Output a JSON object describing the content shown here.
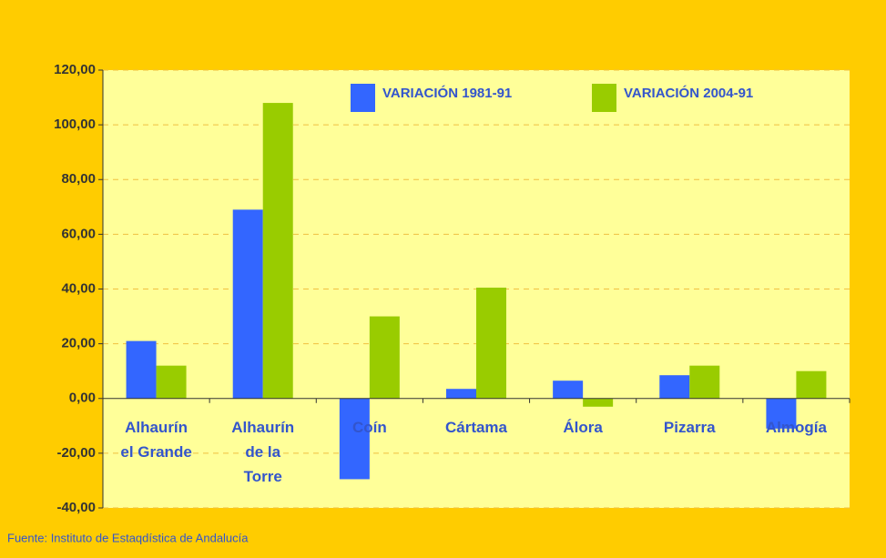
{
  "chart_data": {
    "type": "bar",
    "categories": [
      "Alhaurín el Grande",
      "Alhaurín de la Torre",
      "Coín",
      "Cártama",
      "Álora",
      "Pizarra",
      "Almogía"
    ],
    "series": [
      {
        "name": "VARIACIÓN 1981-91",
        "color": "#3366ff",
        "values": [
          21,
          69,
          -29.5,
          3.5,
          6.5,
          8.5,
          -11
        ]
      },
      {
        "name": "VARIACIÓN 2004-91",
        "color": "#99cc00",
        "values": [
          12,
          108,
          30,
          40.5,
          -3,
          12,
          10
        ]
      }
    ],
    "ylim": [
      -40,
      120
    ],
    "yticks": [
      {
        "value": -40,
        "label": "-40,00"
      },
      {
        "value": -20,
        "label": "-20,00"
      },
      {
        "value": 0,
        "label": "0,00"
      },
      {
        "value": 20,
        "label": "20,00"
      },
      {
        "value": 40,
        "label": "40,00"
      },
      {
        "value": 60,
        "label": "60,00"
      },
      {
        "value": 80,
        "label": "80,00"
      },
      {
        "value": 100,
        "label": "100,00"
      },
      {
        "value": 120,
        "label": "120,00"
      }
    ],
    "grid": true,
    "source": "Fuente: Instituto de Estaqdística de Andalucía"
  }
}
